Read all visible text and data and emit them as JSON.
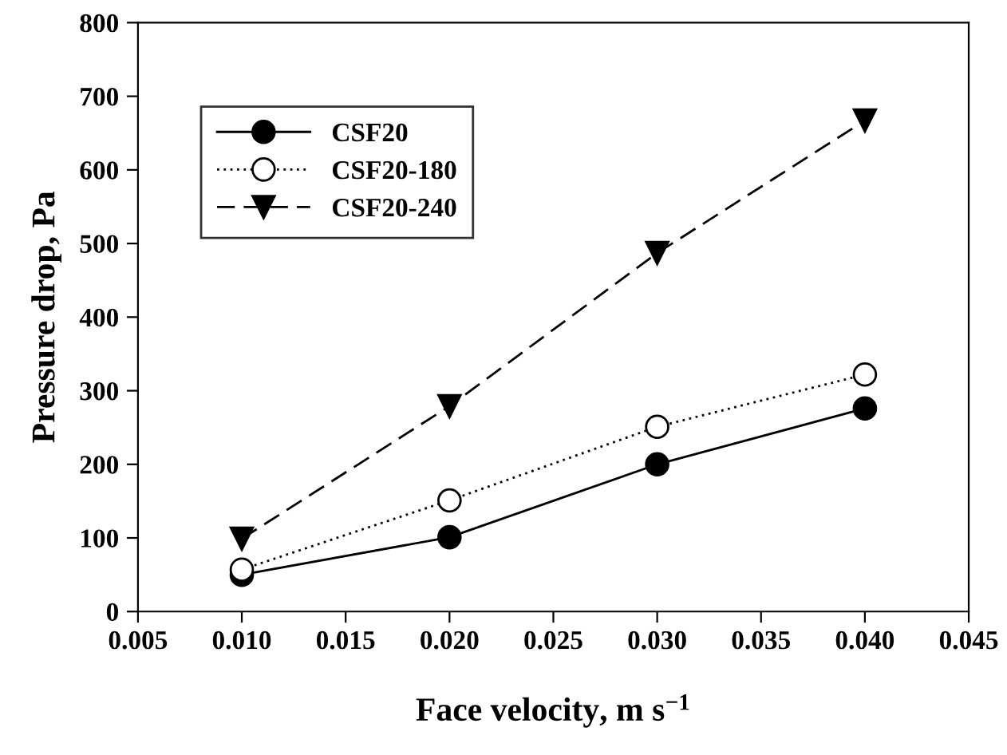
{
  "chart_data": {
    "type": "line",
    "xlabel": "Face velocity, m s$^{−1}$",
    "ylabel": "Pressure drop, Pa",
    "x": [
      0.01,
      0.02,
      0.03,
      0.04
    ],
    "series": [
      {
        "name": "CSF20",
        "color": "#000000",
        "values": [
          50,
          101,
          200,
          276
        ],
        "marker": "circle",
        "line_style": "solid"
      },
      {
        "name": "CSF20-180",
        "color": "#000000",
        "values": [
          57,
          151,
          251,
          322
        ],
        "marker": "circle",
        "line_style": "dotted"
      },
      {
        "name": "CSF20-240",
        "color": "#000000",
        "values": [
          99,
          279,
          487,
          667
        ],
        "marker": "triangle",
        "line_style": "dashed"
      }
    ],
    "xlim": [
      0.005,
      0.045
    ],
    "xticks": [
      {
        "value": 0.005,
        "label": "0.005"
      },
      {
        "value": 0.01,
        "label": "0.010"
      },
      {
        "value": 0.015,
        "label": "0.015"
      },
      {
        "value": 0.02,
        "label": "0.020"
      },
      {
        "value": 0.025,
        "label": "0.025"
      },
      {
        "value": 0.03,
        "label": "0.030"
      },
      {
        "value": 0.035,
        "label": "0.035"
      },
      {
        "value": 0.04,
        "label": "0.040"
      },
      {
        "value": 0.045,
        "label": "0.045"
      }
    ],
    "ylim": [
      0,
      800
    ],
    "yticks": [
      0,
      100,
      200,
      300,
      400,
      500,
      600,
      700,
      800
    ],
    "grid": false,
    "legend": "top left"
  }
}
